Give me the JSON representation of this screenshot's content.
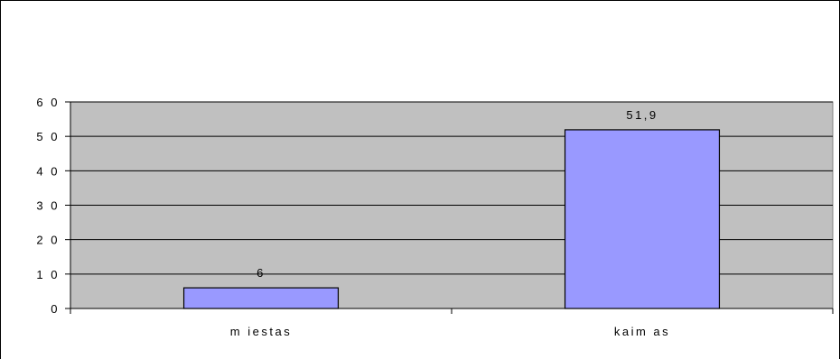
{
  "chart_data": {
    "type": "bar",
    "categories": [
      "m iestas",
      "kaim as"
    ],
    "values": [
      6,
      51.9
    ],
    "data_labels": [
      "6",
      "51,9"
    ],
    "ylim": [
      0,
      60
    ],
    "yticks": [
      0,
      10,
      20,
      30,
      40,
      50,
      60
    ],
    "ytick_labels": [
      "0",
      "1 0",
      "2 0",
      "3 0",
      "4 0",
      "5 0",
      "6 0"
    ],
    "grid": true,
    "legend": "none",
    "colors": {
      "plot_background": "#c0c0c0",
      "bar_fill": "#9999ff",
      "bar_stroke": "#000000",
      "gridline": "#000000"
    }
  }
}
